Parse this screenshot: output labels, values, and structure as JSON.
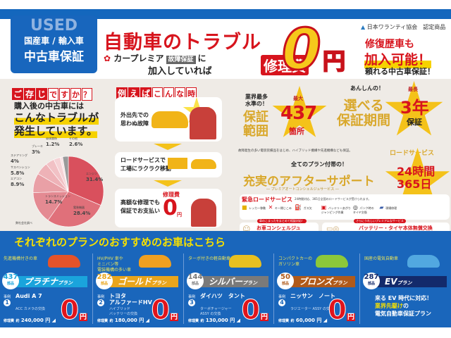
{
  "header": {
    "used": "USED",
    "category": "国産車 / 輸入車",
    "product": "中古車保証",
    "title": "自動車のトラブル",
    "brand": "カープレミア",
    "brand_tag": "故障保証",
    "ni": "に",
    "joined": "加入していれば",
    "repair": "修理費",
    "zero": "0",
    "yen": "円",
    "association": "日本ワランティ協会",
    "certified": "認定商品",
    "history_line1": "修復歴車も",
    "history_line2": "加入可能！",
    "history_line3": "頼れる中古車保証！"
  },
  "colors": {
    "brand_blue": "#1866bd",
    "accent_red": "#d7141d",
    "accent_yellow": "#f4c21a",
    "background": "#efebe6"
  },
  "question": {
    "tag_chars": [
      "ご",
      "存",
      "じ",
      "で",
      "す",
      "か",
      "？"
    ],
    "line1": "購入後の中古車には",
    "line2": "こんなトラブルが",
    "line3": "発生しています。",
    "source": "弊社会社調べ"
  },
  "chart_data": {
    "type": "pie",
    "categories": [
      "エンジン",
      "電装機器",
      "トランスミッション",
      "エアコン",
      "サスペンション",
      "ステアリング",
      "ブレーキ",
      "車体関係",
      "その他"
    ],
    "values": [
      31.4,
      28.4,
      14.7,
      8.9,
      5.8,
      4,
      3,
      1.2,
      2.6
    ],
    "labels": [
      "31.4%",
      "28.4%",
      "14.7%",
      "8.9%",
      "5.8%",
      "4%",
      "3%",
      "1.2%",
      "2.6%"
    ],
    "colors": [
      "#d9505d",
      "#e0707a",
      "#e48a92",
      "#e9a0a6",
      "#eeb2b7",
      "#f1c1c5",
      "#f5d2d5",
      "#f9e4e6",
      "#9a9a9a"
    ]
  },
  "example": {
    "tag_chars": [
      "例",
      "え",
      "ば",
      "こ",
      "ん",
      "な",
      "時"
    ],
    "step1": "外出先での\n思わぬ故障",
    "step2": "ロードサービスで\n工場にラクラク移動",
    "step3": "高額な修理でも\n保証でお支払い",
    "step3_repair": "修理費",
    "step3_zero": "0",
    "step3_yen": "円"
  },
  "coverage": {
    "lead": "業界最多\n水準の！",
    "label": "保証\n範囲",
    "badge": "最大",
    "count": "437",
    "unit": "箇所",
    "note": "故障発生の多い電装装備品をはじめ、ハイブリッド機構や先進機構なども保証。"
  },
  "period": {
    "lead": "あんしんの！",
    "label": "選べる\n保証期間",
    "badge": "最長",
    "value": "3年",
    "unit": "保証"
  },
  "aftersupport": {
    "lead": "全てのプラン付帯の！",
    "title": "充実のアフターサポート",
    "sub": "― プレミアオートコンシェルジュサービス ―",
    "road_label": "ロードサービス",
    "hours": "24時間",
    "days": "365日"
  },
  "road": {
    "title": "緊急ロードサービス",
    "desc": "24時間対応、365日全国のロードサービスが受けられます。",
    "items": [
      "レッカー移動",
      "キー閉じこみ",
      "ガス欠",
      "バッテリーあがり\nジャンピング作業",
      "パンク時の\nタイヤ交換",
      "現場修理"
    ]
  },
  "concierge": {
    "tag": "車のこまったをまとめて相談対応！",
    "title": "お車コンシェルジュ",
    "sub": "(コールセンター)"
  },
  "battery": {
    "tag": "さらにうれしいプレミアムなサービス",
    "title": "バッテリー・タイヤ本体無償交換",
    "sub": "ロードサービス出動時限定"
  },
  "plans": {
    "title": "それぞれのプランのおすすめのお車はこちら",
    "parts_unit": "部品",
    "example_label": "事例",
    "repair_label": "修理費",
    "approx": "約",
    "zero": "0",
    "yen": "円",
    "items": [
      {
        "caption": "先進機構付きの車",
        "parts": "437",
        "name": "プラチナ",
        "suffix": "プラン",
        "color": "#1aa4dc",
        "car_color": "#e4532a",
        "no": "1",
        "car": "Audi A 7",
        "part": "ACC カメラの交換",
        "cost": "240,000 円"
      },
      {
        "caption": "HV/PHV 車や\nミニバン等\n電装機構の多い車",
        "parts": "282",
        "name": "ゴールド",
        "suffix": "プラン",
        "color": "#e9a51c",
        "car_color": "#f0a020",
        "no": "2",
        "car": "トヨタ\nアルファードHV",
        "part": "ハイブリッド\nバッテリーの交換",
        "cost": "180,000 円"
      },
      {
        "caption": "ターボ付きの軽自動車",
        "parts": "144",
        "name": "シルバー",
        "suffix": "プラン",
        "color": "#7a7a7a",
        "car_color": "#e8c020",
        "no": "3",
        "car": "ダイハツ　タント",
        "part": "ターボチャージャー\nASSY の交換",
        "cost": "130,000 円"
      },
      {
        "caption": "コンパクトカーの\nガソリン車",
        "parts": "50",
        "name": "ブロンズ",
        "suffix": "プラン",
        "color": "#b05a1a",
        "car_color": "#8cc83a",
        "no": "4",
        "car": "ニッサン　ノート",
        "part": "ラジエーター ASSY の交換",
        "cost": "60,000 円"
      },
      {
        "caption": "国産の電気自動車",
        "parts": "287",
        "name": "EV",
        "suffix": "プラン",
        "color": "#132a6b",
        "car_color": "#52a8e0",
        "ev1": "来る EV 時代に対応！",
        "ev2": "業界先駆け",
        "ev2b": "の",
        "ev3": "電気自動車保証プラン"
      }
    ]
  }
}
